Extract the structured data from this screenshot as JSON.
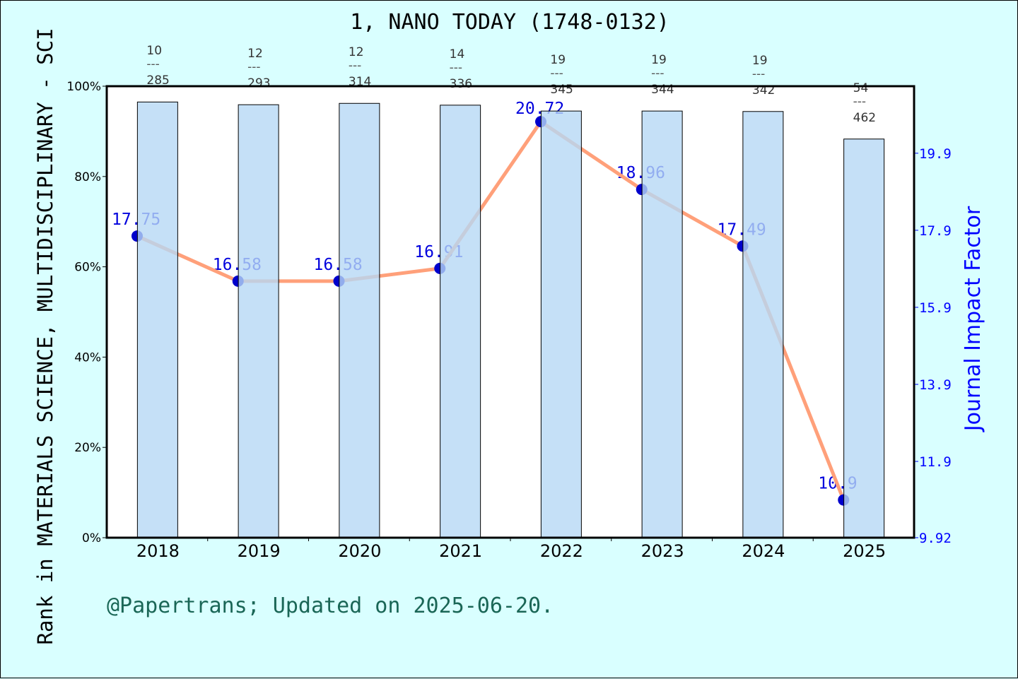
{
  "chart_data": {
    "type": "bar+line",
    "title": "1, NANO TODAY (1748-0132)",
    "ylabel_left": "Rank in MATERIALS SCIENCE, MULTIDISCIPLINARY - SCI",
    "ylabel_right": "Journal Impact Factor",
    "categories": [
      "2018",
      "2019",
      "2020",
      "2021",
      "2022",
      "2023",
      "2024",
      "2025"
    ],
    "left_axis": {
      "ticks": [
        "0%",
        "20%",
        "40%",
        "60%",
        "80%",
        "100%"
      ],
      "range": [
        0,
        100
      ]
    },
    "right_axis": {
      "ticks": [
        "9.92",
        "11.9",
        "13.9",
        "15.9",
        "17.9",
        "19.9"
      ],
      "range": [
        9.92,
        21.64
      ]
    },
    "rank": [
      "10",
      "12",
      "12",
      "14",
      "19",
      "19",
      "19",
      "54"
    ],
    "total": [
      "285",
      "293",
      "314",
      "336",
      "345",
      "344",
      "342",
      "462"
    ],
    "rank_separator": "---",
    "bar_percentile": [
      96.5,
      95.9,
      96.2,
      95.8,
      94.5,
      94.5,
      94.4,
      88.3
    ],
    "impact_factor": [
      17.75,
      16.58,
      16.58,
      16.91,
      20.72,
      18.96,
      17.49,
      10.9
    ],
    "impact_factor_labels": [
      "17.75",
      "16.58",
      "16.58",
      "16.91",
      "20.72",
      "18.96",
      "17.49",
      "10.9"
    ],
    "colors": {
      "bar": "#c5e0f7",
      "line": "#ffa07a",
      "point": "#0000cc",
      "right_axis": "#0000ff",
      "background": "#d9ffff"
    }
  },
  "footer": "@Papertrans; Updated on 2025-06-20."
}
